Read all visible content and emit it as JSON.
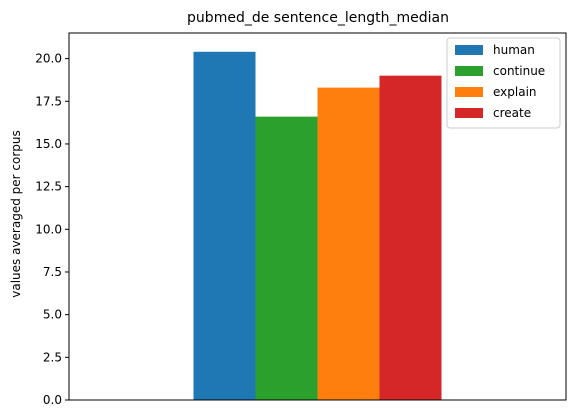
{
  "chart_data": {
    "type": "bar",
    "title": "pubmed_de sentence_length_median",
    "xlabel": "",
    "ylabel": "values averaged per corpus",
    "categories": [
      ""
    ],
    "ylim": [
      0,
      21.5
    ],
    "yticks": [
      0.0,
      2.5,
      5.0,
      7.5,
      10.0,
      12.5,
      15.0,
      17.5,
      20.0
    ],
    "ytick_labels": [
      "0.0",
      "2.5",
      "5.0",
      "7.5",
      "10.0",
      "12.5",
      "15.0",
      "17.5",
      "20.0"
    ],
    "grid": false,
    "legend_position": "top-right",
    "series": [
      {
        "name": "human",
        "values": [
          20.4
        ],
        "color": "#1f77b4"
      },
      {
        "name": "continue",
        "values": [
          16.6
        ],
        "color": "#2ca02c"
      },
      {
        "name": "explain",
        "values": [
          18.3
        ],
        "color": "#ff7f0e"
      },
      {
        "name": "create",
        "values": [
          19.0
        ],
        "color": "#d62728"
      }
    ]
  }
}
